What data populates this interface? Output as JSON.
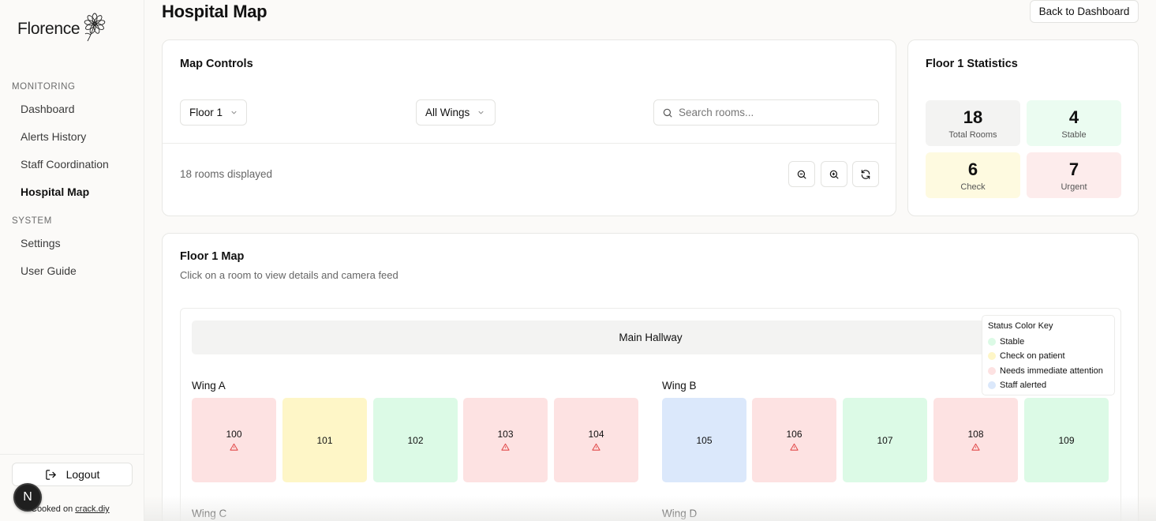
{
  "brand": {
    "name": "Florence"
  },
  "sidebar": {
    "sections": [
      {
        "label": "MONITORING",
        "items": [
          {
            "label": "Dashboard",
            "active": false
          },
          {
            "label": "Alerts History",
            "active": false
          },
          {
            "label": "Staff Coordination",
            "active": false
          },
          {
            "label": "Hospital Map",
            "active": true
          }
        ]
      },
      {
        "label": "SYSTEM",
        "items": [
          {
            "label": "Settings",
            "active": false
          },
          {
            "label": "User Guide",
            "active": false
          }
        ]
      }
    ],
    "logout_label": "Logout",
    "avatar_letter": "N",
    "cooked_prefix": "Cooked on",
    "cooked_link": "crack.diy"
  },
  "header": {
    "title": "Hospital Map",
    "back_label": "Back to Dashboard"
  },
  "controls": {
    "title": "Map Controls",
    "floor_value": "Floor 1",
    "wing_value": "All Wings",
    "search_placeholder": "Search rooms...",
    "rooms_displayed": "18 rooms displayed",
    "icons": [
      "zoom-out-icon",
      "zoom-in-icon",
      "refresh-icon"
    ]
  },
  "stats": {
    "title": "Floor 1 Statistics",
    "total": {
      "value": "18",
      "label": "Total Rooms",
      "color": "#f3f3f2"
    },
    "stable": {
      "value": "4",
      "label": "Stable",
      "color": "#ebfcf1"
    },
    "check": {
      "value": "6",
      "label": "Check",
      "color": "#fefae0"
    },
    "urgent": {
      "value": "7",
      "label": "Urgent",
      "color": "#fdecec"
    }
  },
  "map": {
    "title": "Floor 1 Map",
    "subtitle": "Click on a room to view details and camera feed",
    "hallway": "Main Hallway",
    "legend": {
      "title": "Status Color Key",
      "items": [
        {
          "label": "Stable",
          "color": "#dcfae6"
        },
        {
          "label": "Check on patient",
          "color": "#fef6c7"
        },
        {
          "label": "Needs immediate attention",
          "color": "#fde2e2"
        },
        {
          "label": "Staff alerted",
          "color": "#dbe8fb"
        }
      ]
    },
    "wings": [
      {
        "label": "Wing A",
        "rooms": [
          {
            "number": "100",
            "status": "red",
            "alert": true
          },
          {
            "number": "101",
            "status": "yellow",
            "alert": false
          },
          {
            "number": "102",
            "status": "green",
            "alert": false
          },
          {
            "number": "103",
            "status": "red",
            "alert": true
          },
          {
            "number": "104",
            "status": "red",
            "alert": true
          }
        ]
      },
      {
        "label": "Wing B",
        "rooms": [
          {
            "number": "105",
            "status": "blue",
            "alert": false
          },
          {
            "number": "106",
            "status": "red",
            "alert": true
          },
          {
            "number": "107",
            "status": "green",
            "alert": false
          },
          {
            "number": "108",
            "status": "red",
            "alert": true
          },
          {
            "number": "109",
            "status": "green",
            "alert": false
          }
        ]
      },
      {
        "label": "Wing C",
        "rooms": []
      },
      {
        "label": "Wing D",
        "rooms": []
      }
    ]
  }
}
